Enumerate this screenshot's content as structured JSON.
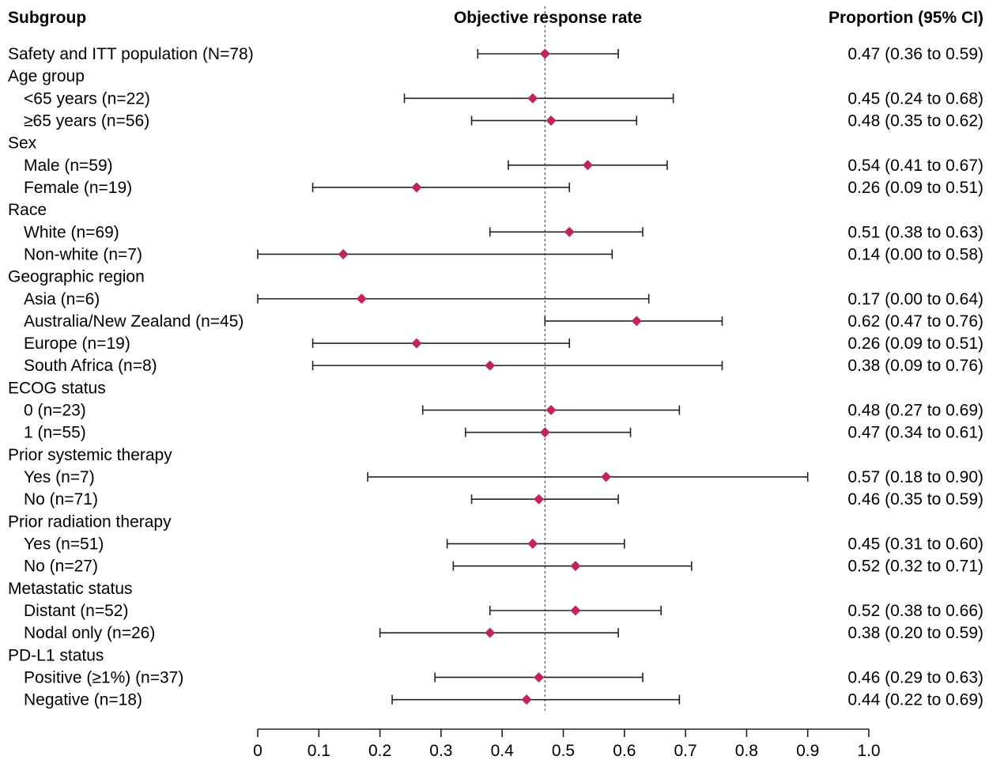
{
  "chart_data": {
    "type": "forest",
    "headers": {
      "subgroup": "Subgroup",
      "plot": "Objective response rate",
      "estimate": "Proportion (95% CI)"
    },
    "reference_value": 0.47,
    "xlim": [
      0,
      1.0
    ],
    "x_ticks": [
      0,
      0.1,
      0.2,
      0.3,
      0.4,
      0.5,
      0.6,
      0.7,
      0.8,
      0.9,
      1.0
    ],
    "x_tick_labels": [
      "0",
      "0.1",
      "0.2",
      "0.3",
      "0.4",
      "0.5",
      "0.6",
      "0.7",
      "0.8",
      "0.9",
      "1.0"
    ],
    "marker_color": "#c0245c",
    "rows": [
      {
        "label": "Safety and ITT population (N=78)",
        "indent": 0,
        "est": 0.47,
        "lo": 0.36,
        "hi": 0.59,
        "text": "0.47 (0.36 to 0.59)"
      },
      {
        "label": "Age group",
        "indent": 0
      },
      {
        "label": "<65 years (n=22)",
        "indent": 1,
        "est": 0.45,
        "lo": 0.24,
        "hi": 0.68,
        "text": "0.45 (0.24 to 0.68)"
      },
      {
        "label": "≥65 years (n=56)",
        "indent": 1,
        "est": 0.48,
        "lo": 0.35,
        "hi": 0.62,
        "text": "0.48 (0.35 to 0.62)"
      },
      {
        "label": "Sex",
        "indent": 0
      },
      {
        "label": "Male (n=59)",
        "indent": 1,
        "est": 0.54,
        "lo": 0.41,
        "hi": 0.67,
        "text": "0.54 (0.41 to 0.67)"
      },
      {
        "label": "Female (n=19)",
        "indent": 1,
        "est": 0.26,
        "lo": 0.09,
        "hi": 0.51,
        "text": "0.26 (0.09 to 0.51)"
      },
      {
        "label": "Race",
        "indent": 0
      },
      {
        "label": "White (n=69)",
        "indent": 1,
        "est": 0.51,
        "lo": 0.38,
        "hi": 0.63,
        "text": "0.51 (0.38 to 0.63)"
      },
      {
        "label": "Non-white (n=7)",
        "indent": 1,
        "est": 0.14,
        "lo": 0.0,
        "hi": 0.58,
        "text": "0.14 (0.00 to 0.58)"
      },
      {
        "label": "Geographic region",
        "indent": 0
      },
      {
        "label": "Asia (n=6)",
        "indent": 1,
        "est": 0.17,
        "lo": 0.0,
        "hi": 0.64,
        "text": "0.17 (0.00 to 0.64)"
      },
      {
        "label": "Australia/New Zealand (n=45)",
        "indent": 1,
        "est": 0.62,
        "lo": 0.47,
        "hi": 0.76,
        "text": "0.62 (0.47 to 0.76)"
      },
      {
        "label": "Europe (n=19)",
        "indent": 1,
        "est": 0.26,
        "lo": 0.09,
        "hi": 0.51,
        "text": "0.26 (0.09 to 0.51)"
      },
      {
        "label": "South Africa (n=8)",
        "indent": 1,
        "est": 0.38,
        "lo": 0.09,
        "hi": 0.76,
        "text": "0.38 (0.09 to 0.76)"
      },
      {
        "label": "ECOG status",
        "indent": 0
      },
      {
        "label": "0 (n=23)",
        "indent": 1,
        "est": 0.48,
        "lo": 0.27,
        "hi": 0.69,
        "text": "0.48 (0.27 to 0.69)"
      },
      {
        "label": "1 (n=55)",
        "indent": 1,
        "est": 0.47,
        "lo": 0.34,
        "hi": 0.61,
        "text": "0.47 (0.34 to 0.61)"
      },
      {
        "label": "Prior systemic therapy",
        "indent": 0
      },
      {
        "label": "Yes (n=7)",
        "indent": 1,
        "est": 0.57,
        "lo": 0.18,
        "hi": 0.9,
        "text": "0.57 (0.18 to 0.90)"
      },
      {
        "label": "No (n=71)",
        "indent": 1,
        "est": 0.46,
        "lo": 0.35,
        "hi": 0.59,
        "text": "0.46 (0.35 to 0.59)"
      },
      {
        "label": "Prior radiation therapy",
        "indent": 0
      },
      {
        "label": "Yes (n=51)",
        "indent": 1,
        "est": 0.45,
        "lo": 0.31,
        "hi": 0.6,
        "text": "0.45 (0.31 to 0.60)"
      },
      {
        "label": "No (n=27)",
        "indent": 1,
        "est": 0.52,
        "lo": 0.32,
        "hi": 0.71,
        "text": "0.52 (0.32 to 0.71)"
      },
      {
        "label": "Metastatic status",
        "indent": 0
      },
      {
        "label": "Distant (n=52)",
        "indent": 1,
        "est": 0.52,
        "lo": 0.38,
        "hi": 0.66,
        "text": "0.52 (0.38 to 0.66)"
      },
      {
        "label": "Nodal only (n=26)",
        "indent": 1,
        "est": 0.38,
        "lo": 0.2,
        "hi": 0.59,
        "text": "0.38 (0.20 to 0.59)"
      },
      {
        "label": "PD-L1 status",
        "indent": 0
      },
      {
        "label": "Positive (≥1%) (n=37)",
        "indent": 1,
        "est": 0.46,
        "lo": 0.29,
        "hi": 0.63,
        "text": "0.46 (0.29 to 0.63)"
      },
      {
        "label": "Negative (n=18)",
        "indent": 1,
        "est": 0.44,
        "lo": 0.22,
        "hi": 0.69,
        "text": "0.44 (0.22 to 0.69)"
      }
    ]
  }
}
